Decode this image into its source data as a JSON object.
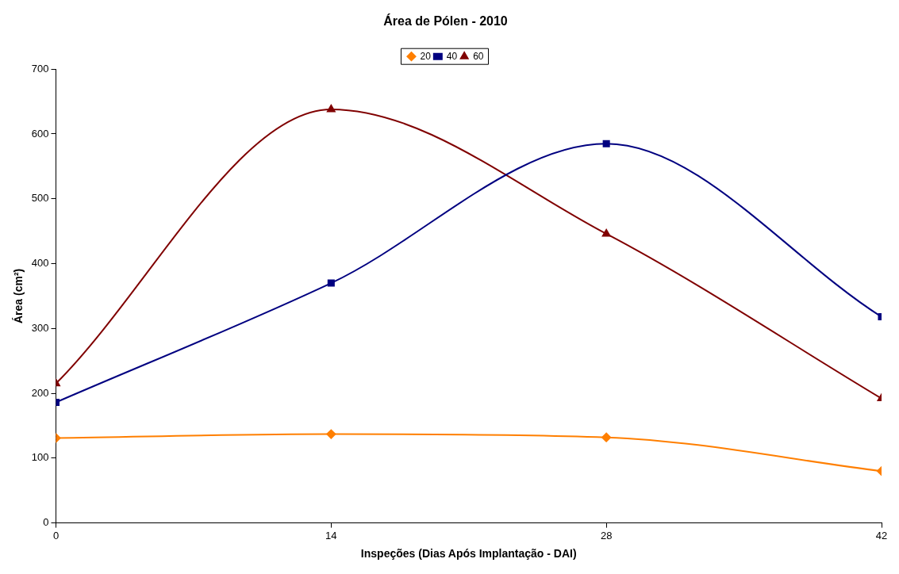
{
  "chart_data": {
    "type": "line",
    "title": "Área de Pólen - 2010",
    "xlabel": "Inspeções (Dias Após Implantação - DAI)",
    "ylabel": "Área (cm²)",
    "x": [
      0,
      14,
      28,
      42
    ],
    "xlim": [
      0,
      42
    ],
    "xticks": [
      0,
      14,
      28,
      42
    ],
    "ylim": [
      0,
      700
    ],
    "yticks": [
      0,
      100,
      200,
      300,
      400,
      500,
      600,
      700
    ],
    "grid": false,
    "legend": "top",
    "series": [
      {
        "name": "20",
        "color": "#ff7f00",
        "marker": "diamond",
        "values": [
          131,
          137,
          132,
          80
        ]
      },
      {
        "name": "40",
        "color": "#000080",
        "marker": "square",
        "values": [
          186,
          370,
          585,
          318
        ]
      },
      {
        "name": "60",
        "color": "#800000",
        "marker": "triangle",
        "values": [
          215,
          638,
          446,
          192
        ]
      }
    ]
  }
}
